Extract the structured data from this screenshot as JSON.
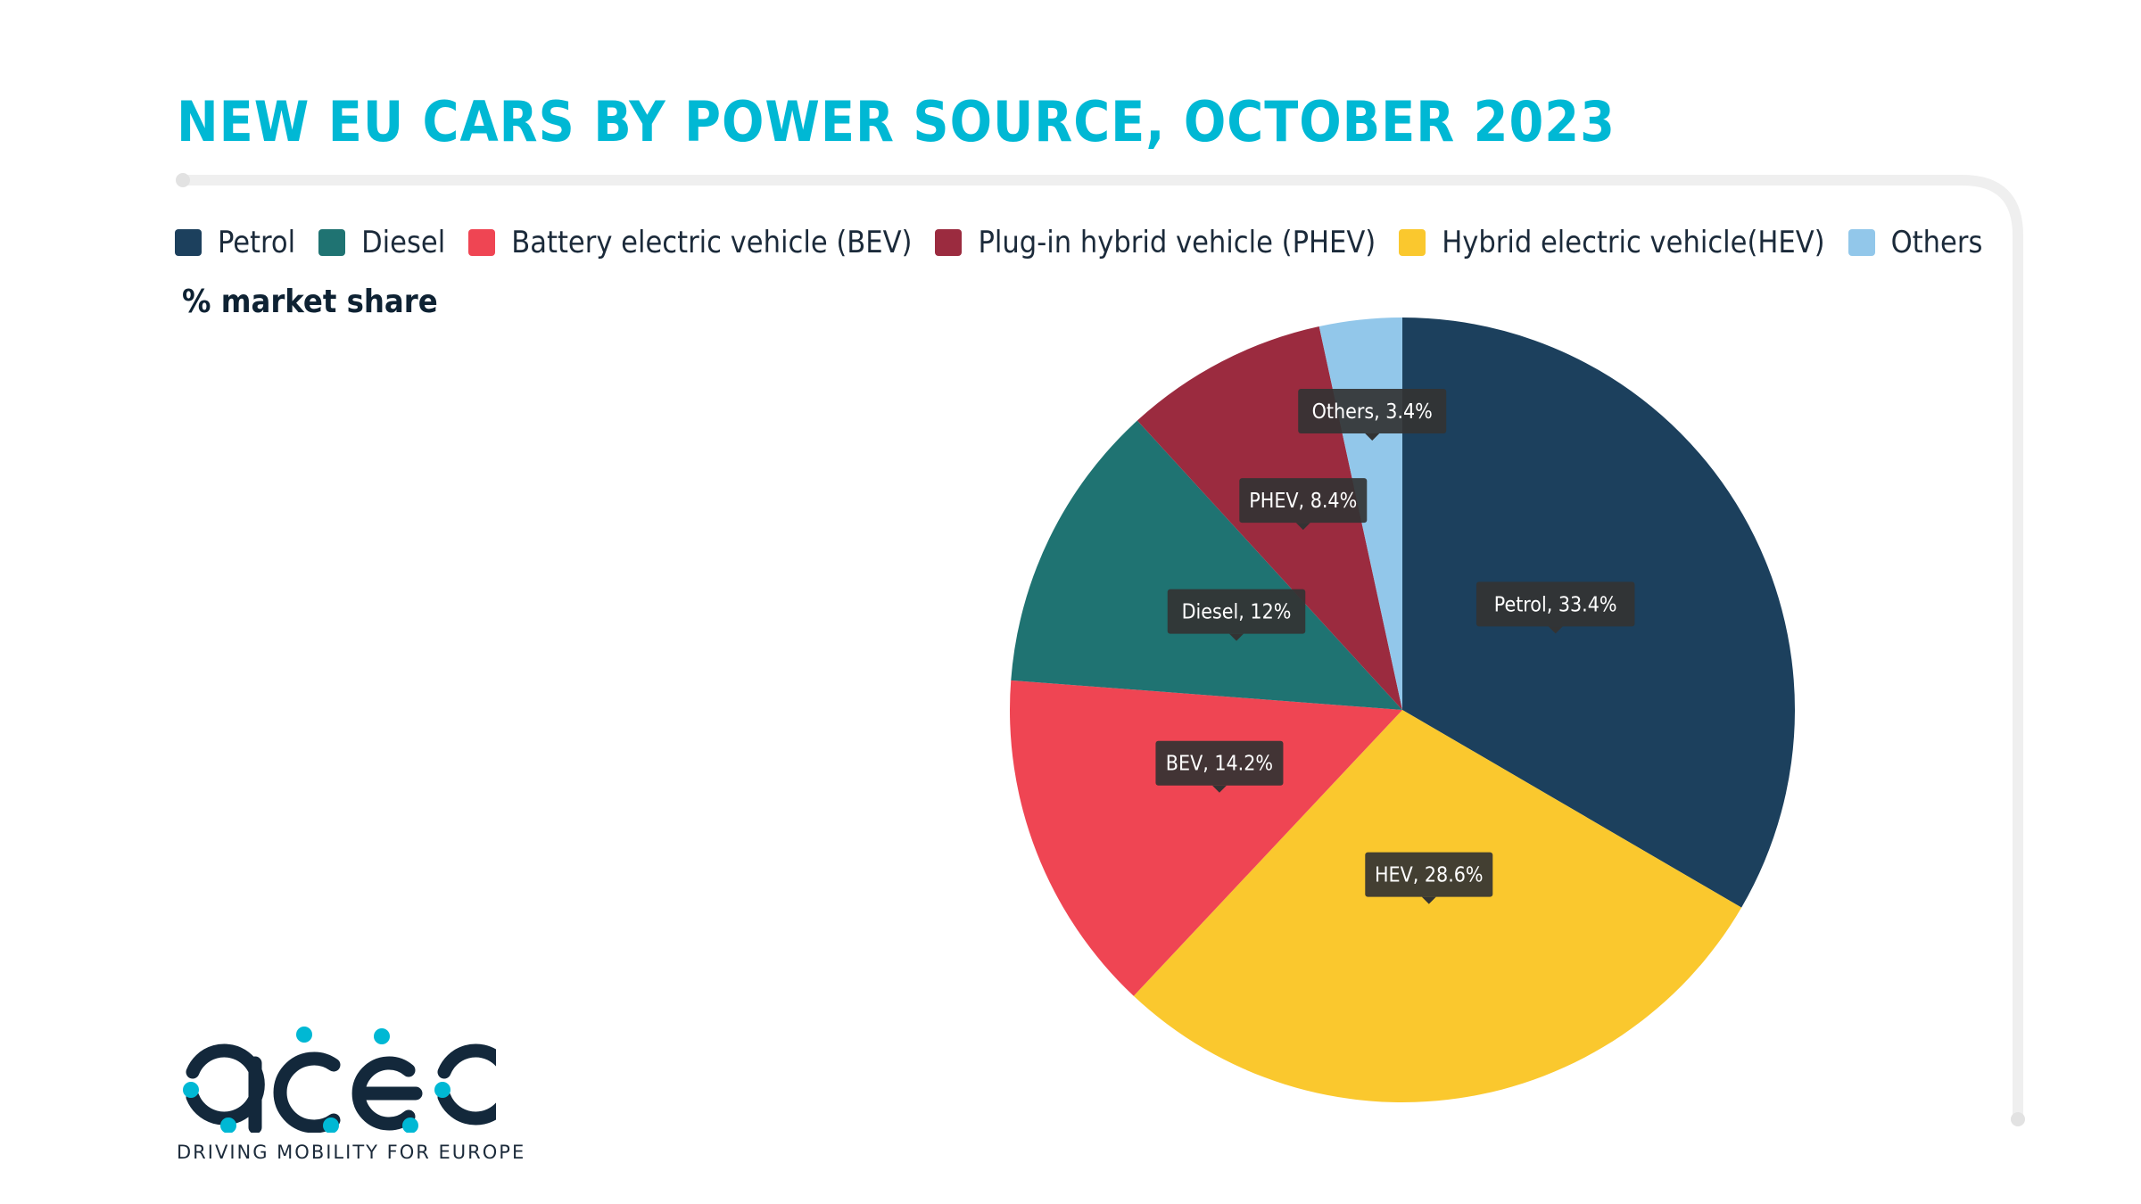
{
  "title": "NEW EU CARS BY POWER SOURCE, OCTOBER 2023",
  "subtitle": "% market share",
  "legend": [
    {
      "label": "Petrol",
      "color": "#1c405d"
    },
    {
      "label": "Diesel",
      "color": "#1f7372"
    },
    {
      "label": "Battery electric vehicle (BEV)",
      "color": "#ef4553"
    },
    {
      "label": "Plug-in hybrid vehicle (PHEV)",
      "color": "#9b2b3f"
    },
    {
      "label": "Hybrid electric vehicle(HEV)",
      "color": "#fac82e"
    },
    {
      "label": "Others",
      "color": "#92c7ea"
    }
  ],
  "chart_data": {
    "type": "pie",
    "title": "NEW EU CARS BY POWER SOURCE, OCTOBER 2023",
    "subtitle": "% market share",
    "slices": [
      {
        "name": "Petrol",
        "label": "Petrol, 33.4%",
        "value": 33.4,
        "color": "#1c405d"
      },
      {
        "name": "HEV",
        "label": "HEV, 28.6%",
        "value": 28.6,
        "color": "#fac82e"
      },
      {
        "name": "BEV",
        "label": "BEV, 14.2%",
        "value": 14.2,
        "color": "#ef4553"
      },
      {
        "name": "Diesel",
        "label": "Diesel, 12%",
        "value": 12,
        "color": "#1f7372"
      },
      {
        "name": "PHEV",
        "label": "PHEV, 8.4%",
        "value": 8.4,
        "color": "#9b2b3f"
      },
      {
        "name": "Others",
        "label": "Others, 3.4%",
        "value": 3.4,
        "color": "#92c7ea"
      }
    ],
    "legend_position": "top-left"
  },
  "logo": {
    "text": "acea",
    "tagline": "DRIVING MOBILITY FOR EUROPE"
  }
}
